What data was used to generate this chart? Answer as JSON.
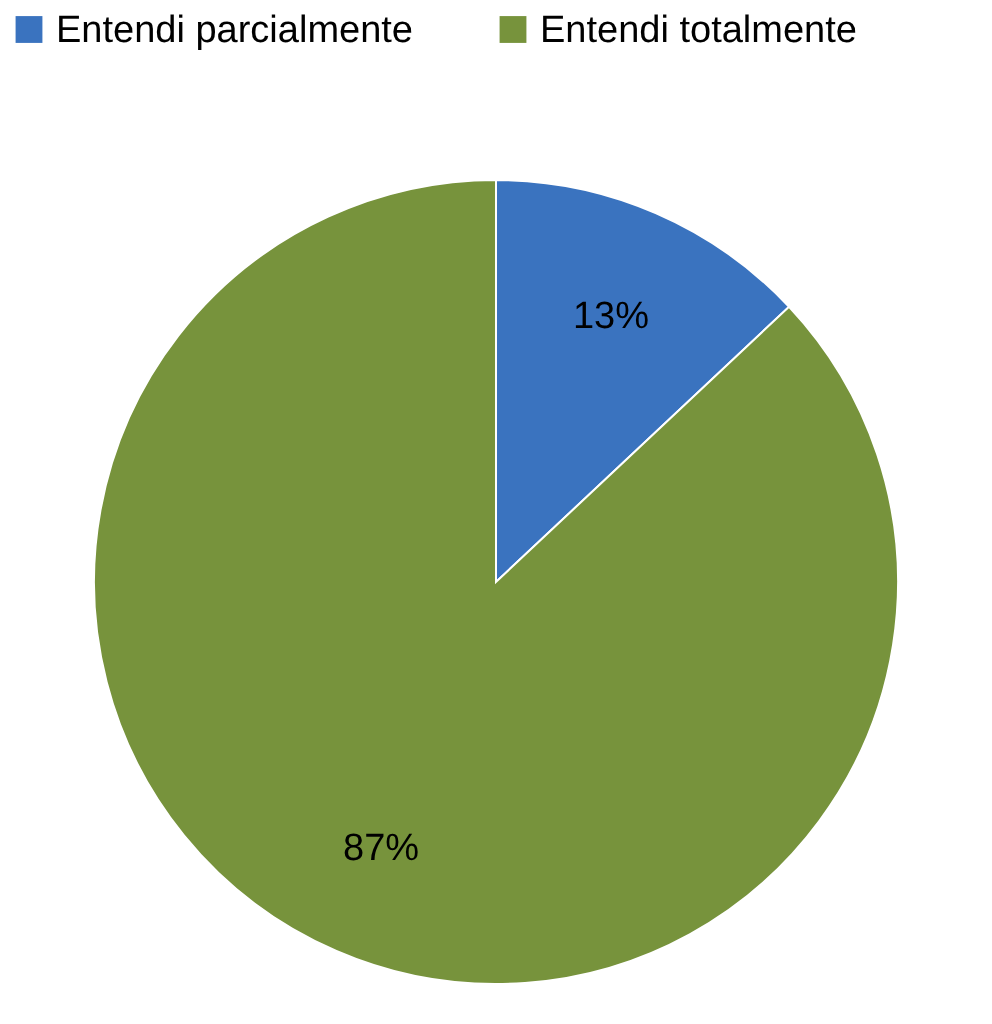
{
  "chart_data": {
    "type": "pie",
    "categories": [
      "Entendi parcialmente",
      "Entendi totalmente"
    ],
    "values": [
      13,
      87
    ],
    "colors": [
      "#3a73bf",
      "#77933c"
    ],
    "value_labels": [
      "13%",
      "87%"
    ],
    "legend": "top"
  }
}
